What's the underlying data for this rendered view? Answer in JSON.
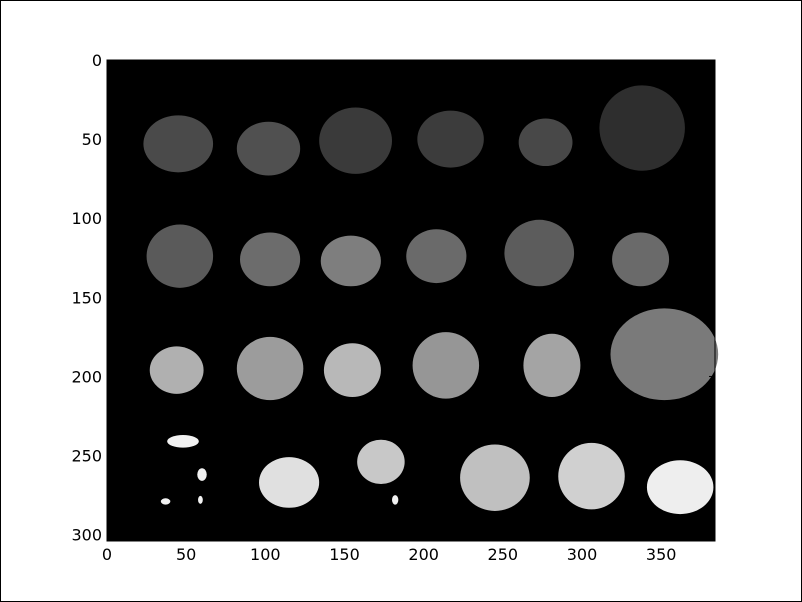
{
  "colors": {
    "background": "#ffffff",
    "image_background": "#000000",
    "axis": "#000000"
  },
  "image": {
    "description_kind": "grayscale image shown in axes with pixel coordinates",
    "xlim": [
      0,
      384
    ],
    "ylim": [
      304,
      0
    ],
    "x_ticks": [
      "0",
      "50",
      "100",
      "150",
      "200",
      "250",
      "300",
      "350"
    ],
    "y_ticks": [
      "0",
      "50",
      "100",
      "150",
      "200",
      "250",
      "300"
    ],
    "blobs": [
      {
        "cx": 45,
        "cy": 53,
        "rx": 22,
        "ry": 18,
        "gray": "#4a4a4a"
      },
      {
        "cx": 102,
        "cy": 56,
        "rx": 20,
        "ry": 17,
        "gray": "#505050"
      },
      {
        "cx": 157,
        "cy": 51,
        "rx": 23,
        "ry": 21,
        "gray": "#3a3a3a"
      },
      {
        "cx": 217,
        "cy": 50,
        "rx": 21,
        "ry": 18,
        "gray": "#3c3c3c"
      },
      {
        "cx": 277,
        "cy": 52,
        "rx": 17,
        "ry": 15,
        "gray": "#484848"
      },
      {
        "cx": 338,
        "cy": 43,
        "rx": 27,
        "ry": 27,
        "gray": "#2e2e2e"
      },
      {
        "cx": 46,
        "cy": 124,
        "rx": 21,
        "ry": 20,
        "gray": "#5a5a5a"
      },
      {
        "cx": 103,
        "cy": 126,
        "rx": 19,
        "ry": 17,
        "gray": "#6c6c6c"
      },
      {
        "cx": 154,
        "cy": 127,
        "rx": 19,
        "ry": 16,
        "gray": "#7e7e7e"
      },
      {
        "cx": 208,
        "cy": 124,
        "rx": 19,
        "ry": 17,
        "gray": "#6a6a6a"
      },
      {
        "cx": 273,
        "cy": 122,
        "rx": 22,
        "ry": 21,
        "gray": "#5c5c5c"
      },
      {
        "cx": 337,
        "cy": 126,
        "rx": 18,
        "ry": 17,
        "gray": "#6a6a6a"
      },
      {
        "cx": 44,
        "cy": 196,
        "rx": 17,
        "ry": 15,
        "gray": "#b0b0b0"
      },
      {
        "cx": 103,
        "cy": 195,
        "rx": 21,
        "ry": 20,
        "gray": "#9c9c9c"
      },
      {
        "cx": 155,
        "cy": 196,
        "rx": 18,
        "ry": 17,
        "gray": "#b8b8b8"
      },
      {
        "cx": 214,
        "cy": 193,
        "rx": 21,
        "ry": 21,
        "gray": "#969696"
      },
      {
        "cx": 281,
        "cy": 193,
        "rx": 18,
        "ry": 20,
        "gray": "#a4a4a4"
      },
      {
        "cx": 352,
        "cy": 186,
        "rx": 34,
        "ry": 29,
        "gray": "#7a7a7a"
      },
      {
        "cx": 115,
        "cy": 267,
        "rx": 19,
        "ry": 16,
        "gray": "#e0e0e0"
      },
      {
        "cx": 173,
        "cy": 254,
        "rx": 15,
        "ry": 14,
        "gray": "#c8c8c8"
      },
      {
        "cx": 245,
        "cy": 264,
        "rx": 22,
        "ry": 21,
        "gray": "#c0c0c0"
      },
      {
        "cx": 306,
        "cy": 263,
        "rx": 21,
        "ry": 21,
        "gray": "#d0d0d0"
      },
      {
        "cx": 362,
        "cy": 270,
        "rx": 21,
        "ry": 17,
        "gray": "#eeeeee"
      },
      {
        "cx": 48,
        "cy": 241,
        "rx": 10,
        "ry": 4,
        "gray": "#f2f2f2"
      },
      {
        "cx": 60,
        "cy": 262,
        "rx": 3,
        "ry": 4,
        "gray": "#f2f2f2"
      },
      {
        "cx": 37,
        "cy": 279,
        "rx": 3,
        "ry": 2,
        "gray": "#f2f2f2"
      },
      {
        "cx": 59,
        "cy": 278,
        "rx": 1.5,
        "ry": 2.5,
        "gray": "#f2f2f2"
      },
      {
        "cx": 182,
        "cy": 278,
        "rx": 2,
        "ry": 3,
        "gray": "#f2f2f2"
      }
    ]
  }
}
